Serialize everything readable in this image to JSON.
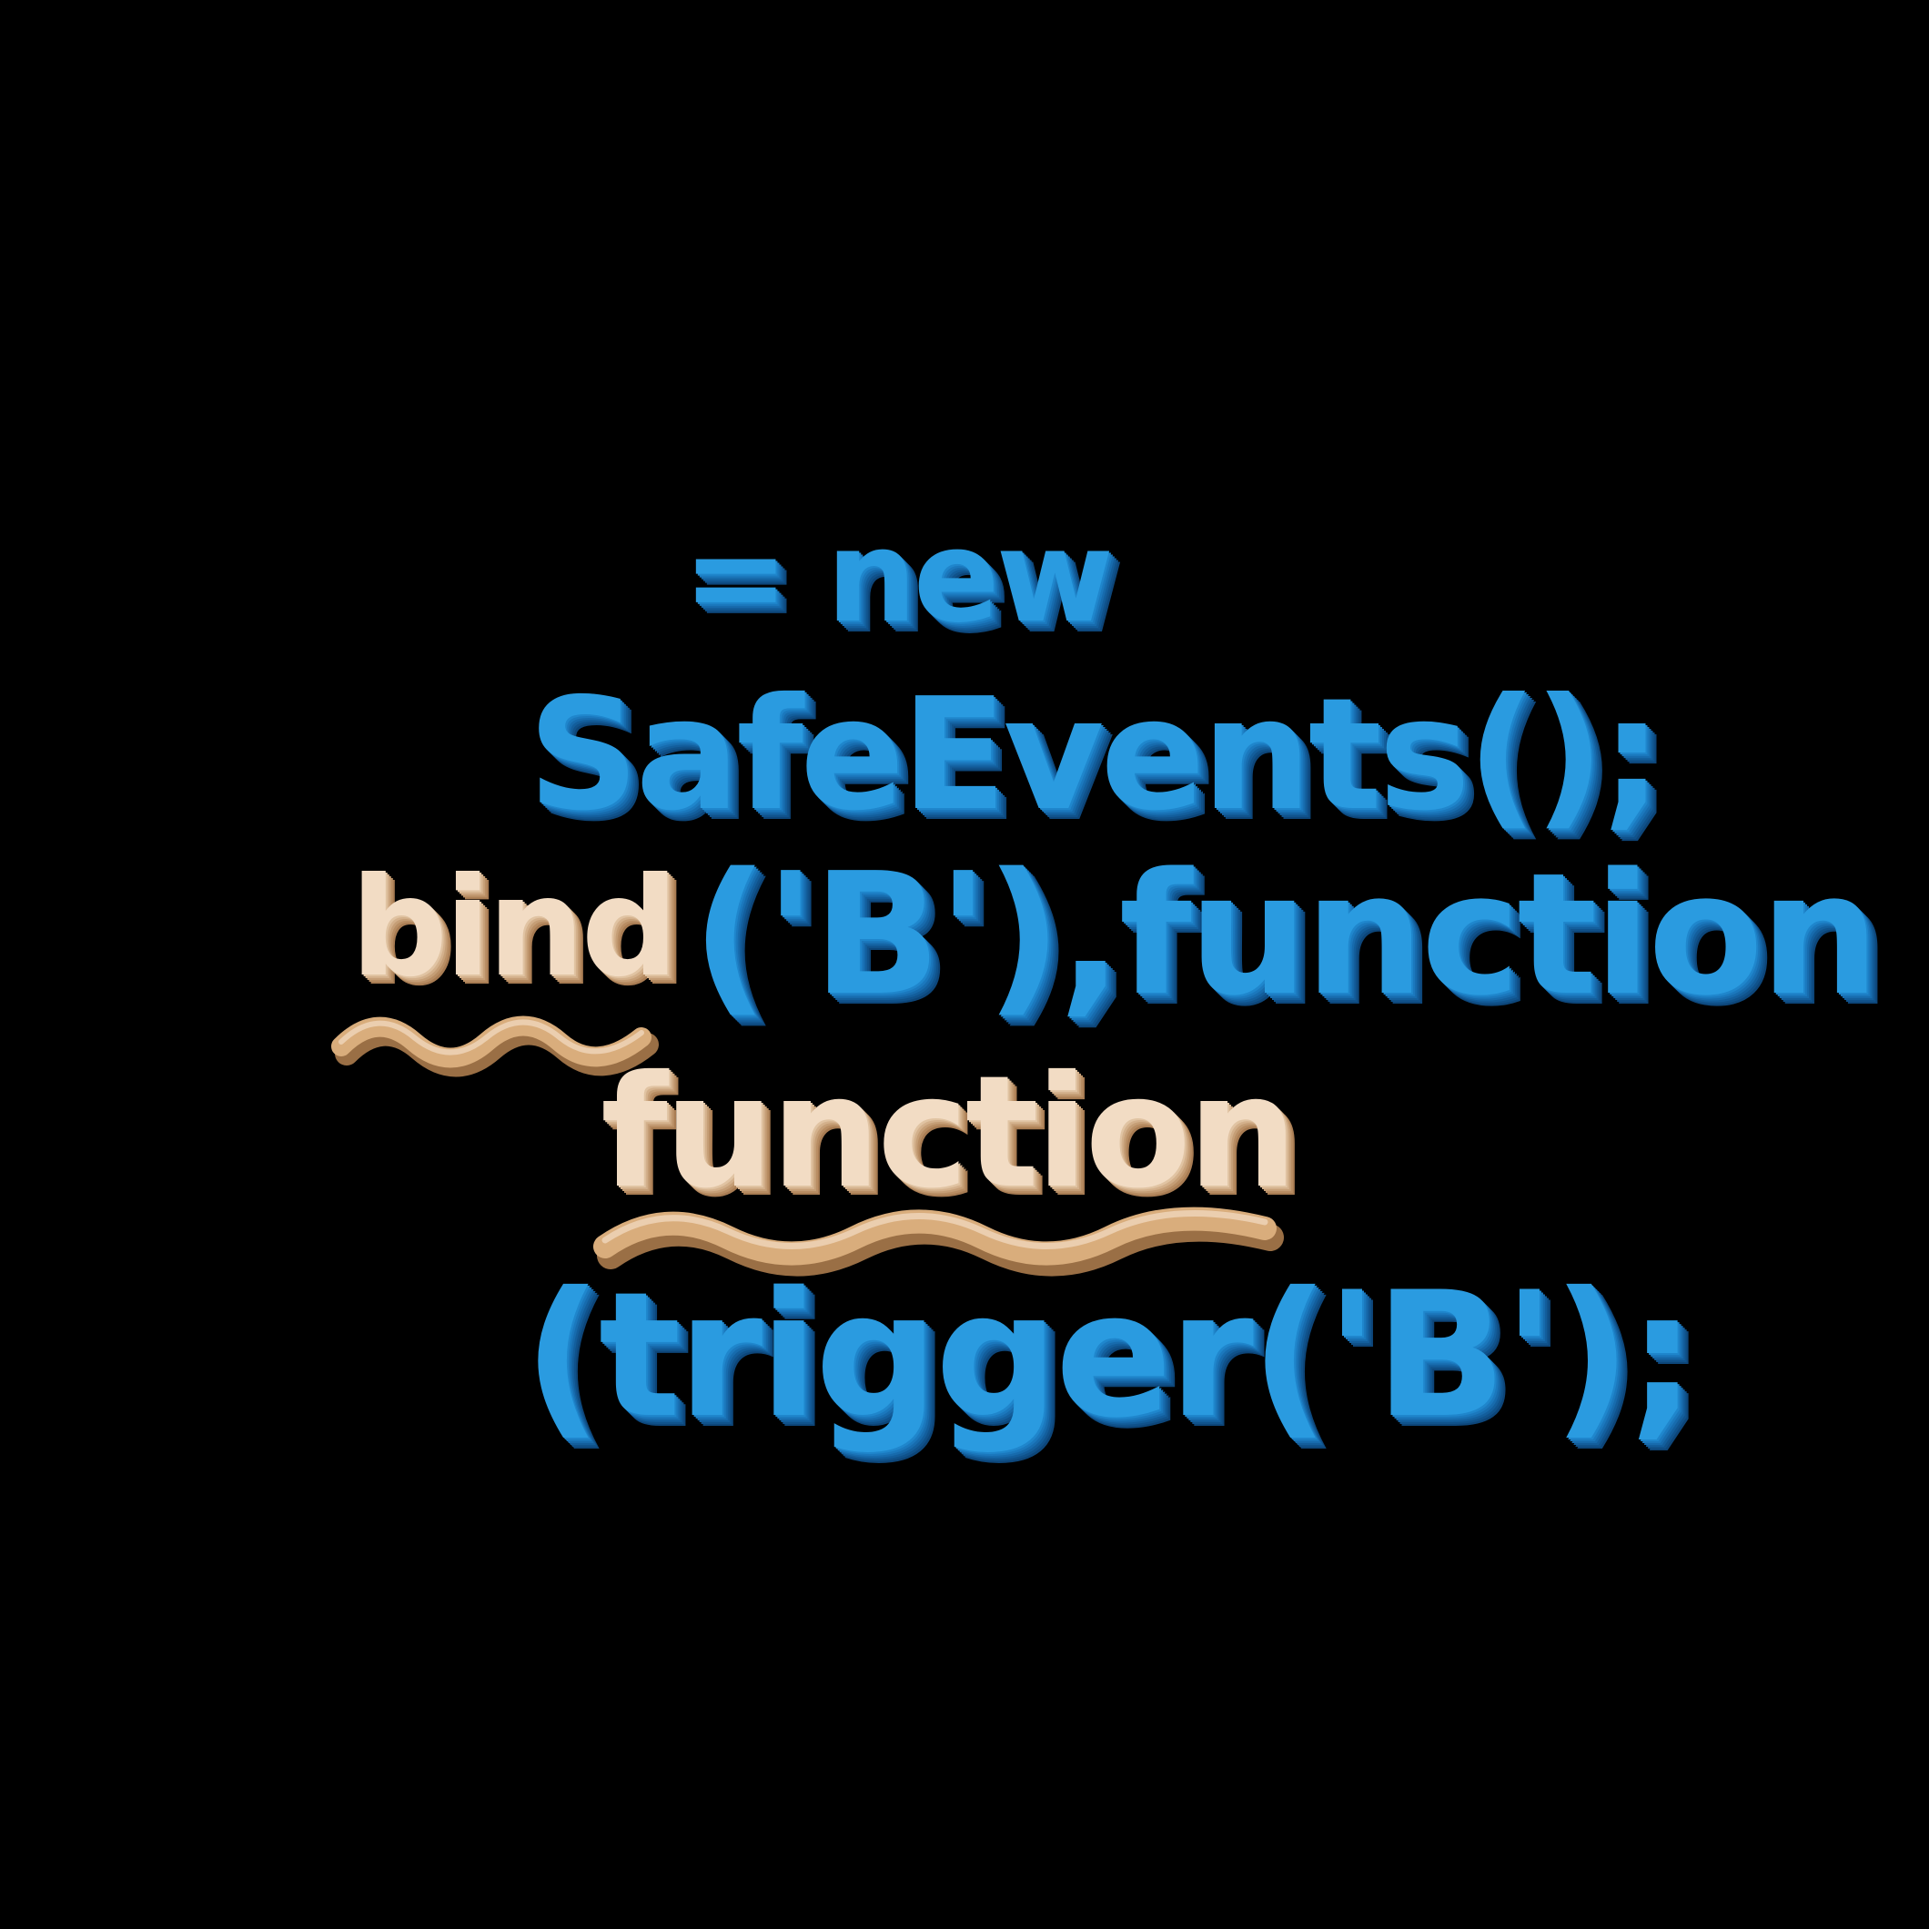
{
  "lines": {
    "assign_new": "= new",
    "safe_events": "SafeEvents();",
    "bind": "bind",
    "bind_args": "('B'),function",
    "function": "function",
    "trigger": "(trigger('B');"
  },
  "colors": {
    "background": "#000000",
    "blue_text": "#2a9be0",
    "tan_text": "#f2dcc4",
    "squiggle": "#d9ad7c"
  }
}
